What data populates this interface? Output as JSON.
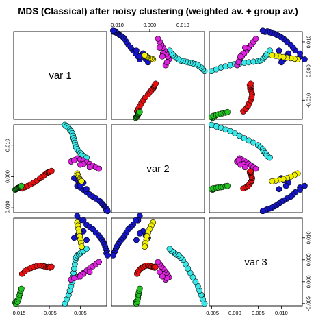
{
  "chart_data": {
    "type": "scatter-matrix",
    "title": "MDS (Classical) after noisy clustering (weighted av. + group av.)",
    "variables": [
      "var 1",
      "var 2",
      "var 3"
    ],
    "colors": {
      "c1": "#e81010",
      "c2": "#22c422",
      "c3": "#1616c8",
      "c4": "#38e8e8",
      "c5": "#dc22dc",
      "c6": "#f0f000"
    },
    "ranges": {
      "var1": [
        -0.0165,
        0.0135
      ],
      "var2": [
        -0.0115,
        0.0165
      ],
      "var3": [
        -0.0055,
        0.0145
      ]
    },
    "ticks": {
      "var1": {
        "values": [
          -0.015,
          -0.005,
          0.005
        ],
        "labels": [
          "-0.015",
          "-0.005",
          "0.005"
        ]
      },
      "var1_top": {
        "values": [
          -0.01,
          0.0,
          0.01
        ],
        "labels": [
          "-0.010",
          "0.000",
          "0.010"
        ]
      },
      "var2": {
        "values": [
          -0.01,
          0.0,
          0.01
        ],
        "labels": [
          "-0.010",
          "0.000",
          "0.010"
        ]
      },
      "var3": {
        "values": [
          -0.005,
          0.0,
          0.005,
          0.01
        ],
        "labels": [
          "-0.005",
          "0.000",
          "0.005",
          "0.010"
        ]
      }
    },
    "series": [
      {
        "color": "c1",
        "points": [
          [
            -0.0138,
            -0.0038,
            0.0018
          ],
          [
            -0.0129,
            -0.0034,
            0.0024
          ],
          [
            -0.012,
            -0.003,
            0.0028
          ],
          [
            -0.011,
            -0.0025,
            0.0031
          ],
          [
            -0.01,
            -0.0019,
            0.0034
          ],
          [
            -0.009,
            -0.0013,
            0.0036
          ],
          [
            -0.008,
            -0.0005,
            0.0037
          ],
          [
            -0.0072,
            0.0,
            0.0036
          ],
          [
            -0.0066,
            0.0005,
            0.0035
          ],
          [
            -0.006,
            0.001,
            0.0033
          ],
          [
            -0.0055,
            0.0013,
            0.0033
          ],
          [
            -0.0052,
            0.0014,
            0.0034
          ],
          [
            -0.0048,
            0.0015,
            0.0032
          ],
          [
            -0.0043,
            0.0018,
            0.0034
          ]
        ]
      },
      {
        "color": "c2",
        "points": [
          [
            -0.016,
            -0.0042,
            -0.0048
          ],
          [
            -0.0157,
            -0.004,
            -0.005
          ],
          [
            -0.0155,
            -0.0039,
            -0.0044
          ],
          [
            -0.0153,
            -0.0037,
            -0.0046
          ],
          [
            -0.015,
            -0.0036,
            -0.004
          ],
          [
            -0.0148,
            -0.0035,
            -0.0036
          ],
          [
            -0.0146,
            -0.0034,
            -0.003
          ],
          [
            -0.0144,
            -0.0033,
            -0.0026
          ],
          [
            -0.0142,
            -0.0031,
            -0.002
          ],
          [
            -0.014,
            -0.003,
            -0.0016
          ]
        ]
      },
      {
        "color": "c3",
        "points": [
          [
            0.004,
            -0.003,
            0.015
          ],
          [
            0.005,
            -0.0035,
            0.014
          ],
          [
            0.006,
            -0.0042,
            0.014
          ],
          [
            0.007,
            -0.005,
            0.013
          ],
          [
            0.008,
            -0.0057,
            0.0125
          ],
          [
            0.009,
            -0.0064,
            0.012
          ],
          [
            0.01,
            -0.007,
            0.0112
          ],
          [
            0.011,
            -0.0076,
            0.0105
          ],
          [
            0.0115,
            -0.008,
            0.01
          ],
          [
            0.012,
            -0.0086,
            0.0095
          ],
          [
            0.0124,
            -0.0091,
            0.009
          ],
          [
            0.0128,
            -0.0095,
            0.0085
          ],
          [
            0.013,
            -0.0099,
            0.008
          ],
          [
            0.0132,
            -0.0102,
            0.0075
          ],
          [
            0.0136,
            -0.0104,
            0.007
          ],
          [
            0.0134,
            -0.0108,
            0.0065
          ],
          [
            0.0138,
            -0.011,
            0.006
          ],
          [
            0.006,
            -0.002,
            0.0115
          ],
          [
            0.004,
            -0.0012,
            0.0105
          ],
          [
            0.003,
            -0.0005,
            0.01
          ],
          [
            0.005,
            -0.003,
            0.011
          ],
          [
            0.007,
            -0.004,
            0.0095
          ]
        ]
      },
      {
        "color": "c4",
        "points": [
          [
            0.0,
            0.0165,
            -0.005
          ],
          [
            0.0006,
            0.016,
            -0.004
          ],
          [
            0.0012,
            0.0155,
            -0.003
          ],
          [
            0.0016,
            0.015,
            -0.002
          ],
          [
            0.002,
            0.0145,
            -0.001
          ],
          [
            0.0024,
            0.0138,
            0.0
          ],
          [
            0.0026,
            0.013,
            0.001
          ],
          [
            0.0028,
            0.0122,
            0.002
          ],
          [
            0.003,
            0.0115,
            0.003
          ],
          [
            0.0032,
            0.0108,
            0.004
          ],
          [
            0.0034,
            0.01,
            0.005
          ],
          [
            0.0036,
            0.0093,
            0.0055
          ],
          [
            0.004,
            0.0087,
            0.006
          ],
          [
            0.0045,
            0.008,
            0.0062
          ],
          [
            0.005,
            0.0075,
            0.0065
          ],
          [
            0.0055,
            0.007,
            0.0068
          ],
          [
            0.006,
            0.0065,
            0.007
          ],
          [
            0.007,
            0.006,
            0.0075
          ]
        ]
      },
      {
        "color": "c5",
        "points": [
          [
            0.004,
            0.0058,
            0.001
          ],
          [
            0.005,
            0.0054,
            0.0015
          ],
          [
            0.006,
            0.005,
            0.002
          ],
          [
            0.007,
            0.0045,
            0.0025
          ],
          [
            0.008,
            0.004,
            0.003
          ],
          [
            0.009,
            0.0035,
            0.0035
          ],
          [
            0.01,
            0.003,
            0.004
          ],
          [
            0.011,
            0.0025,
            0.0045
          ],
          [
            0.002,
            0.0048,
            0.0005
          ],
          [
            0.003,
            0.0052,
            0.0008
          ],
          [
            0.006,
            0.004,
            0.0018
          ],
          [
            0.008,
            0.003,
            0.0022
          ],
          [
            0.005,
            0.0038,
            0.0012
          ]
        ]
      },
      {
        "color": "c6",
        "points": [
          [
            0.004,
            0.001,
            0.0135
          ],
          [
            0.0042,
            0.0005,
            0.0128
          ],
          [
            0.0044,
            0.0,
            0.012
          ],
          [
            0.0046,
            -0.0005,
            0.0112
          ],
          [
            0.0048,
            -0.0008,
            0.0104
          ],
          [
            0.005,
            -0.001,
            0.0096
          ],
          [
            0.0052,
            -0.0013,
            0.0088
          ],
          [
            0.0054,
            -0.0015,
            0.008
          ]
        ]
      }
    ]
  }
}
